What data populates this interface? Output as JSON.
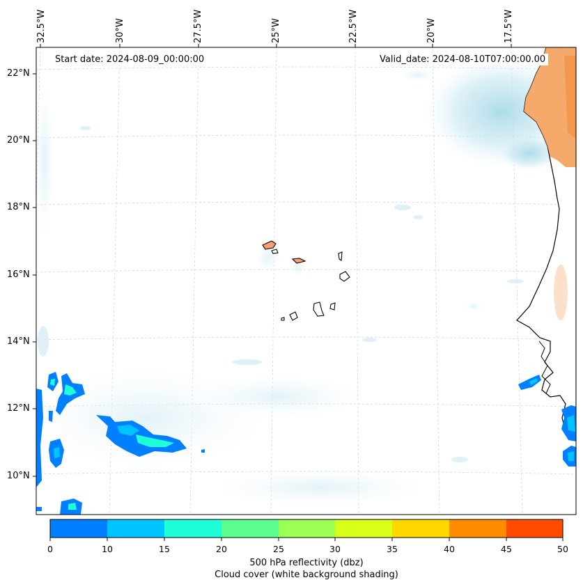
{
  "map": {
    "start_date": "Start date: 2024-08-09_00:00:00",
    "valid_date": "Valid_date: 2024-08-10T07:00:00.00",
    "lon_labels": [
      "32.5°W",
      "30°W",
      "27.5°W",
      "25°W",
      "22.5°W",
      "20°W",
      "17.5°W"
    ],
    "lat_labels": [
      "22°N",
      "20°N",
      "18°N",
      "16°N",
      "14°N",
      "12°N",
      "10°N"
    ],
    "region": "Cape Verde Islands / West African coast"
  },
  "colorbar": {
    "ticks": [
      "0",
      "10",
      "15",
      "20",
      "25",
      "30",
      "35",
      "40",
      "45",
      "50"
    ],
    "colors": [
      "#0080ff",
      "#00c4ff",
      "#1effd8",
      "#5cff90",
      "#9cff56",
      "#d8ff1a",
      "#ffd800",
      "#ff8c00",
      "#ff4c00"
    ],
    "label_line1": "500 hPa reflectivity (dbz)",
    "label_line2": "Cloud cover (white background shading)"
  }
}
